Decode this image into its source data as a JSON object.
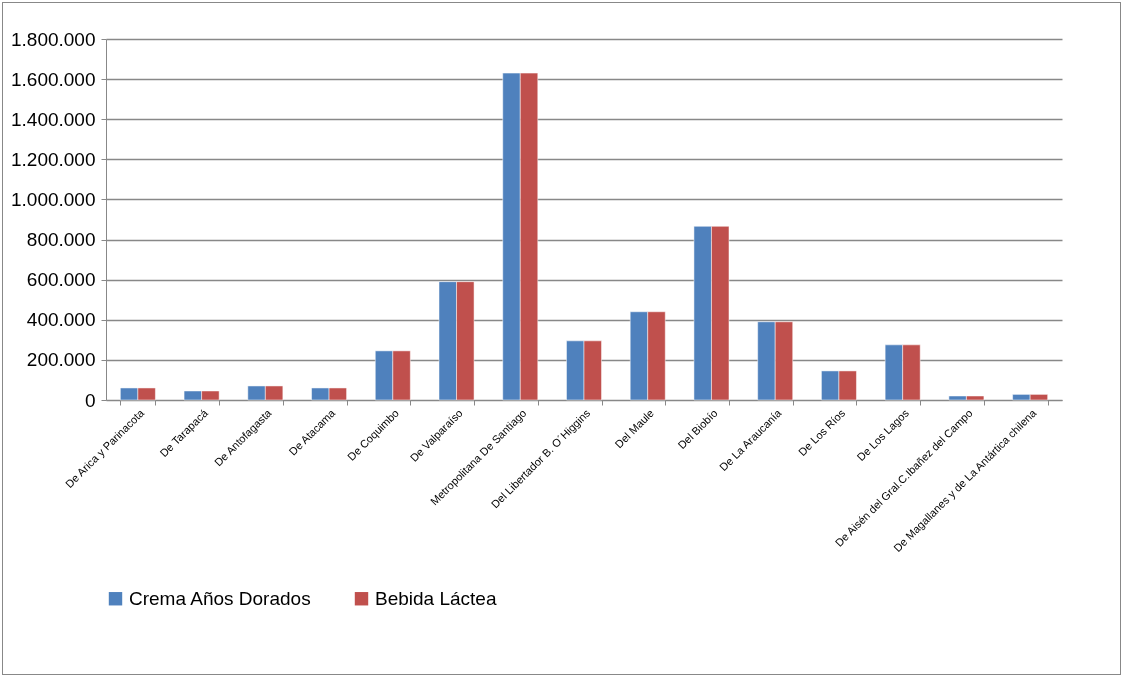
{
  "chart_data": {
    "type": "bar",
    "categories": [
      "De Arica y Parinacota",
      "De Tarapacá",
      "De Antofagasta",
      "De Atacama",
      "De Coquimbo",
      "De Valparaíso",
      "Metropolitana De Santiago",
      "Del Libertador B. O´Higgins",
      "Del Maule",
      "Del Biobío",
      "De La Araucanía",
      "De Los Ríos",
      "De Los Lagos",
      "De Aisén del Gral.C.Ibañez del Campo",
      "De Magallanes y de La Antártica chilena"
    ],
    "series": [
      {
        "name": "Crema Años Dorados",
        "color": "#4f81bd",
        "values": [
          60000,
          45000,
          70000,
          60000,
          245000,
          590000,
          1630000,
          295000,
          440000,
          866000,
          390000,
          145000,
          275000,
          20000,
          28000
        ]
      },
      {
        "name": "Bebida Láctea",
        "color": "#c0504d",
        "values": [
          60000,
          45000,
          70000,
          60000,
          245000,
          590000,
          1630000,
          295000,
          440000,
          866000,
          390000,
          145000,
          275000,
          20000,
          28000
        ]
      }
    ],
    "ylim": [
      0,
      1800000
    ],
    "yticks": [
      0,
      {
        "value": 200000,
        "label": "200.000"
      },
      {
        "value": 400000,
        "label": "400.000"
      },
      {
        "value": 600000,
        "label": "600.000"
      },
      {
        "value": 800000,
        "label": "800.000"
      },
      {
        "value": 1000000,
        "label": "1.000.000"
      },
      {
        "value": 1200000,
        "label": "1.200.000"
      },
      {
        "value": 1400000,
        "label": "1.400.000"
      },
      {
        "value": 1600000,
        "label": "1.600.000"
      },
      {
        "value": 1800000,
        "label": "1.800.000"
      }
    ],
    "grid": "y",
    "legend": "bottom"
  }
}
